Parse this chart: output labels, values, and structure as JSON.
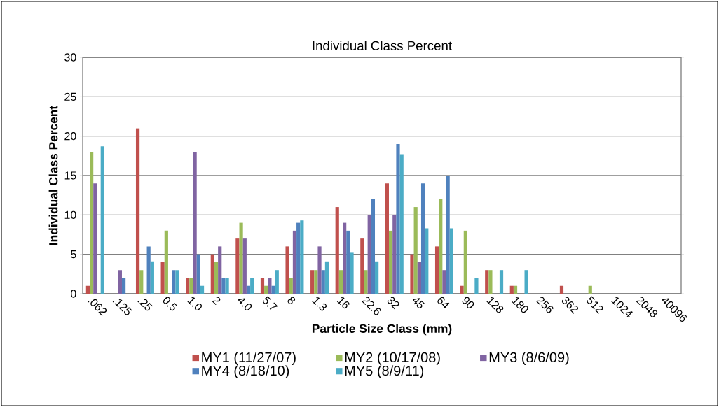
{
  "chart_data": {
    "type": "bar",
    "title": "Individual Class Percent",
    "xlabel": "Particle Size Class (mm)",
    "ylabel": "Individual Class Percent",
    "categories": [
      ".062",
      ".125",
      ".25",
      "0.5",
      "1.0",
      "2",
      "4.0",
      "5.7",
      "8",
      "1.3",
      "16",
      "22.6",
      "32",
      "45",
      "64",
      "90",
      "128",
      "180",
      "256",
      "362",
      "512",
      "1024",
      "2048",
      "40096"
    ],
    "series": [
      {
        "name": "MY1 (11/27/07)",
        "color": "#c0504d",
        "values": [
          1,
          0,
          21,
          4,
          2,
          5,
          7,
          2,
          6,
          3,
          11,
          7,
          14,
          5,
          6,
          1,
          3,
          1,
          0,
          1,
          0,
          0,
          0,
          0
        ]
      },
      {
        "name": "MY2 (10/17/08)",
        "color": "#9bbb59",
        "values": [
          18,
          0,
          3,
          8,
          2,
          4,
          9,
          1,
          2,
          3,
          3,
          3,
          8,
          11,
          12,
          8,
          3,
          1,
          0,
          0,
          1,
          0,
          0,
          0
        ]
      },
      {
        "name": "MY3 (8/6/09)",
        "color": "#8064a2",
        "values": [
          14,
          3,
          0,
          0,
          18,
          6,
          7,
          2,
          8,
          6,
          9,
          10,
          10,
          4,
          3,
          0,
          0,
          0,
          0,
          0,
          0,
          0,
          0,
          0
        ]
      },
      {
        "name": "MY4 (8/18/10)",
        "color": "#4f81bd",
        "values": [
          0,
          2,
          6,
          3,
          5,
          2,
          1,
          1,
          9,
          3,
          8,
          12,
          19,
          14,
          15,
          0,
          0,
          0,
          0,
          0,
          0,
          0,
          0,
          0
        ]
      },
      {
        "name": "MY5 (8/9/11)",
        "color": "#4bacc6",
        "values": [
          18.7,
          0,
          4.1,
          3,
          1,
          2,
          2,
          3,
          9.3,
          4.1,
          5.2,
          4.1,
          17.7,
          8.3,
          8.3,
          2,
          3,
          3,
          0,
          0,
          0,
          0,
          0,
          0
        ]
      }
    ],
    "ylim": [
      0,
      30
    ],
    "yticks": [
      0,
      5,
      10,
      15,
      20,
      25,
      30
    ],
    "grid": "y",
    "legend": "bottom"
  }
}
